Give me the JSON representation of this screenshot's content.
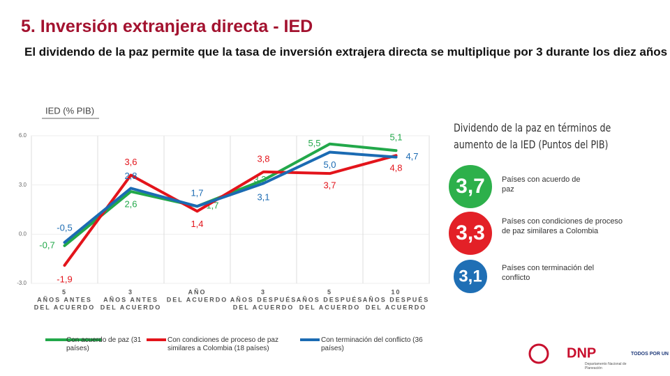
{
  "header": {
    "title": "5. Inversión extranjera directa - IED",
    "subtitle": "El dividendo de la paz permite que la tasa de inversión extrajera directa se multiplique por 3 durante los diez años"
  },
  "chart_data": {
    "type": "line",
    "ylabel": "IED (% PIB)",
    "categories": [
      [
        "5",
        "AÑOS ANTES",
        "DEL ACUERDO"
      ],
      [
        "3",
        "AÑOS ANTES",
        "DEL ACUERDO"
      ],
      [
        "AÑO",
        "DEL ACUERDO"
      ],
      [
        "3",
        "AÑOS DESPUÉS",
        "DEL ACUERDO"
      ],
      [
        "5",
        "AÑOS DESPUÉS",
        "DEL ACUERDO"
      ],
      [
        "10",
        "AÑOS DESPUÉS",
        "DEL ACUERDO"
      ]
    ],
    "series": [
      {
        "name": "Con acuerdo de paz (31 países)",
        "color": "#22a84a",
        "values": [
          -0.7,
          2.6,
          1.7,
          3.3,
          5.5,
          5.1
        ],
        "value_labels": [
          "-0,7",
          "2,6",
          "1,7",
          "3,3",
          "5,5",
          "5,1"
        ]
      },
      {
        "name": "Con condiciones de proceso de paz similares a Colombia (18 países)",
        "color": "#e3141b",
        "values": [
          -1.9,
          3.6,
          1.4,
          3.8,
          3.7,
          4.8
        ],
        "value_labels": [
          "-1,9",
          "3,6",
          "1,4",
          "3,8",
          "3,7",
          "4,8"
        ]
      },
      {
        "name": "Con terminación del conflicto (36 países)",
        "color": "#1b6bb3",
        "values": [
          -0.5,
          2.8,
          1.7,
          3.1,
          5.0,
          4.7
        ],
        "value_labels": [
          "-0,5",
          "2,8",
          "1,7",
          "3,1",
          "5,0",
          "4,7"
        ]
      }
    ],
    "ylim": [
      -3,
      6
    ],
    "yticks": [
      {
        "value": -3,
        "label": "-3.0"
      },
      {
        "value": 0,
        "label": "0.0"
      },
      {
        "value": 3,
        "label": "3.0"
      },
      {
        "value": 6,
        "label": "6.0"
      }
    ]
  },
  "dividend": {
    "title": "Dividendo de la paz en términos de aumento de la IED (Puntos del PIB)",
    "items": [
      {
        "value": 3.7,
        "value_label": "3,7",
        "label": "Países con acuerdo de paz",
        "color": "#2db04b"
      },
      {
        "value": 3.3,
        "value_label": "3,3",
        "label": "Países con condiciones de proceso de paz similares a Colombia",
        "color": "#e32027"
      },
      {
        "value": 3.1,
        "value_label": "3,1",
        "label": "Países con terminación del conflicto",
        "color": "#1f6fb5"
      }
    ]
  },
  "footer": {
    "dnp": "DNP",
    "dnp_sub": "Departamento Nacional de Planeación",
    "gov": "TODOS POR UN NUEVO PAÍS"
  }
}
